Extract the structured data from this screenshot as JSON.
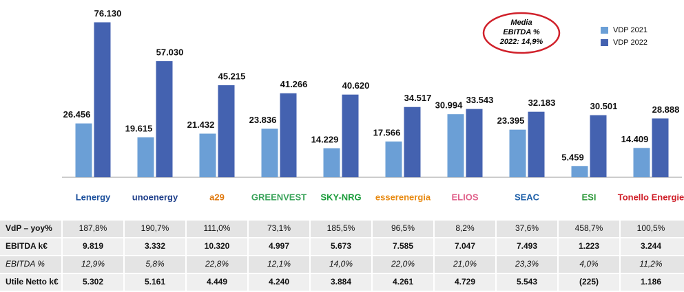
{
  "chart_data": {
    "type": "bar",
    "categories": [
      "Lenergy",
      "unoenergy",
      "a29",
      "GREENVEST",
      "SKY-NRG",
      "esserenergia",
      "ELIOS",
      "SEAC",
      "ESI",
      "Tonello Energie"
    ],
    "series": [
      {
        "name": "VDP 2021",
        "color": "#6b9fd6",
        "values": [
          26456,
          19615,
          21432,
          23836,
          14229,
          17566,
          30994,
          23395,
          5459,
          14409
        ],
        "value_labels": [
          "26.456",
          "19.615",
          "21.432",
          "23.836",
          "14.229",
          "17.566",
          "30.994",
          "23.395",
          "5.459",
          "14.409"
        ]
      },
      {
        "name": "VDP 2022",
        "color": "#4462b0",
        "values": [
          76130,
          57030,
          45215,
          41266,
          40620,
          34517,
          33543,
          32183,
          30501,
          28888
        ],
        "value_labels": [
          "76.130",
          "57.030",
          "45.215",
          "41.266",
          "40.620",
          "34.517",
          "33.543",
          "32.183",
          "30.501",
          "28.888"
        ]
      }
    ],
    "ylim": [
      0,
      80000
    ],
    "legend": "top-right",
    "annotation": [
      "Media",
      "EBITDA %",
      "2022: 14,9%"
    ]
  },
  "table": {
    "rows": [
      {
        "label": "VdP – yoy%",
        "values": [
          "187,8%",
          "190,7%",
          "111,0%",
          "73,1%",
          "185,5%",
          "96,5%",
          "8,2%",
          "37,6%",
          "458,7%",
          "100,5%"
        ]
      },
      {
        "label": "EBITDA k€",
        "values": [
          "9.819",
          "3.332",
          "10.320",
          "4.997",
          "5.673",
          "7.585",
          "7.047",
          "7.493",
          "1.223",
          "3.244"
        ]
      },
      {
        "label": "EBITDA %",
        "values": [
          "12,9%",
          "5,8%",
          "22,8%",
          "12,1%",
          "14,0%",
          "22,0%",
          "21,0%",
          "23,3%",
          "4,0%",
          "11,2%"
        ]
      },
      {
        "label": "Utile Netto k€",
        "values": [
          "5.302",
          "5.161",
          "4.449",
          "4.240",
          "3.884",
          "4.261",
          "4.729",
          "5.543",
          "(225)",
          "1.186"
        ]
      }
    ]
  }
}
